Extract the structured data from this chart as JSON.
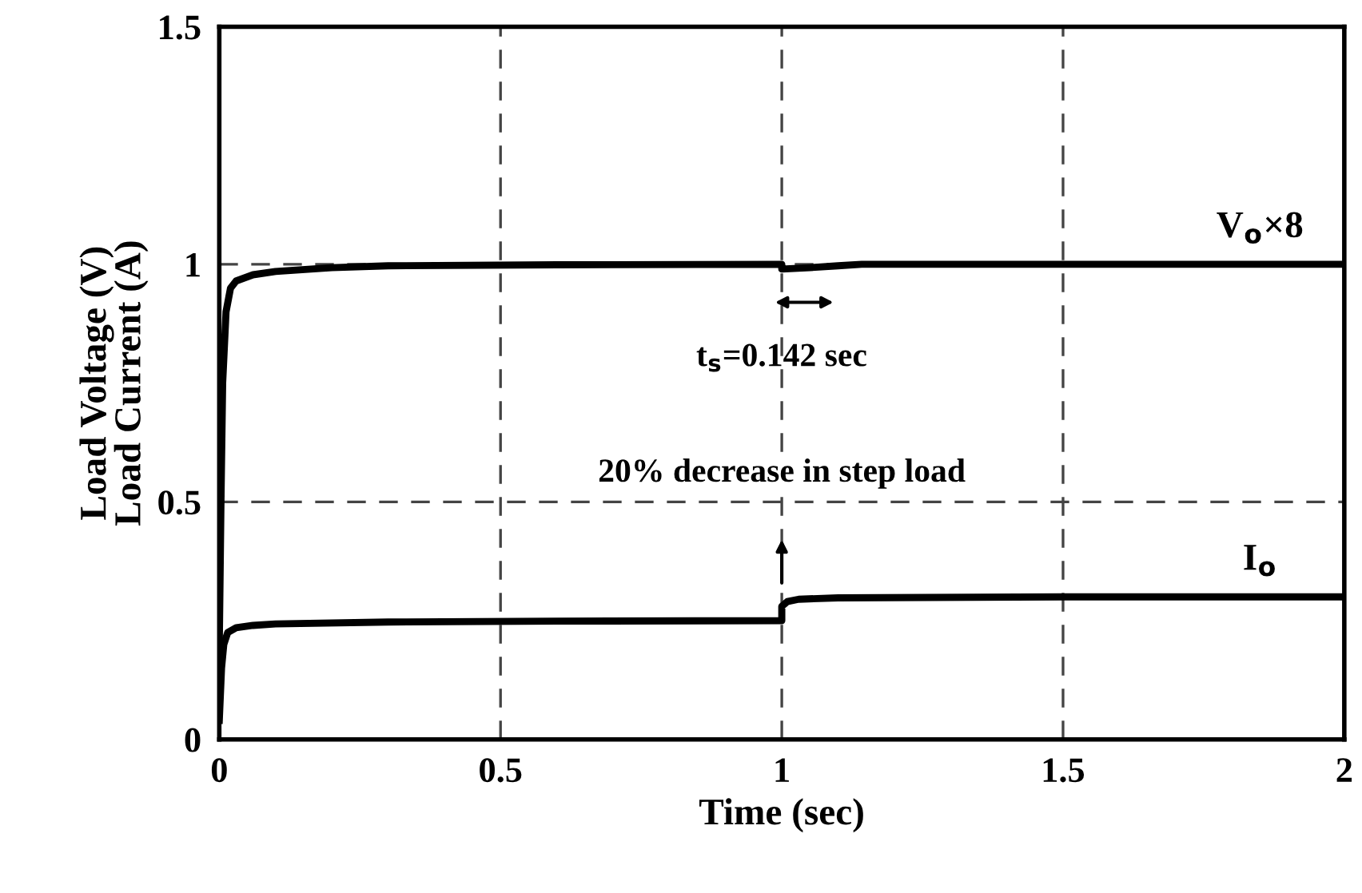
{
  "chart_data": {
    "type": "line",
    "xlabel": "Time (sec)",
    "ylabel": "Load Voltage (V)\nLoad Current (A)",
    "xlim": [
      0,
      2
    ],
    "ylim": [
      0,
      1.5
    ],
    "xticks": [
      0,
      0.5,
      1,
      1.5,
      2
    ],
    "yticks": [
      0,
      0.5,
      1,
      1.5
    ],
    "grid": true,
    "line_style": "solid",
    "series": [
      {
        "name": "V$_{o}$×8",
        "color": "#000000",
        "x": [
          0,
          0.003,
          0.006,
          0.012,
          0.02,
          0.03,
          0.06,
          0.1,
          0.2,
          0.3,
          0.6,
          1.0,
          1.0,
          1.05,
          1.1,
          1.142,
          1.5,
          2.0
        ],
        "values": [
          0.2,
          0.5,
          0.75,
          0.9,
          0.95,
          0.965,
          0.978,
          0.985,
          0.993,
          0.997,
          0.999,
          1.0,
          0.99,
          0.993,
          0.997,
          1.0,
          1.0,
          1.0
        ]
      },
      {
        "name": "I$_{o}$",
        "color": "#000000",
        "x": [
          0,
          0.004,
          0.008,
          0.015,
          0.03,
          0.06,
          0.1,
          0.3,
          0.6,
          1.0,
          1.0,
          1.01,
          1.03,
          1.1,
          1.5,
          2.0
        ],
        "values": [
          0.04,
          0.15,
          0.2,
          0.225,
          0.235,
          0.24,
          0.243,
          0.247,
          0.249,
          0.25,
          0.28,
          0.29,
          0.295,
          0.298,
          0.3,
          0.3
        ]
      }
    ],
    "annotations": [
      "t$_{s}$=0.142 sec",
      "20% decrease in step load"
    ]
  }
}
